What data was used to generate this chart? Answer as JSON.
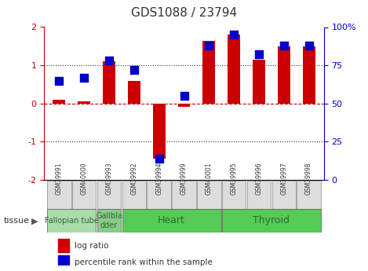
{
  "title": "GDS1088 / 23794",
  "samples": [
    "GSM39991",
    "GSM40000",
    "GSM39993",
    "GSM39992",
    "GSM39994",
    "GSM39999",
    "GSM40001",
    "GSM39995",
    "GSM39996",
    "GSM39997",
    "GSM39998"
  ],
  "log_ratio": [
    0.1,
    0.05,
    1.1,
    0.6,
    -1.45,
    -0.08,
    1.65,
    1.8,
    1.15,
    1.5,
    1.5
  ],
  "percentile_rank": [
    65,
    67,
    78,
    72,
    14,
    55,
    88,
    95,
    82,
    88,
    88
  ],
  "ylim_left": [
    -2,
    2
  ],
  "ylim_right": [
    0,
    100
  ],
  "yticks_left": [
    -2,
    -1,
    0,
    1,
    2
  ],
  "yticks_right": [
    0,
    25,
    50,
    75,
    100
  ],
  "ytick_labels_right": [
    "0",
    "25",
    "50",
    "75",
    "100%"
  ],
  "bar_color": "#cc0000",
  "dot_color": "#0000cc",
  "hline_color": "#cc0000",
  "dotted_color": "#333333",
  "tissue_groups": [
    {
      "label": "Fallopian tube",
      "start": 0,
      "end": 2,
      "color": "#aaddaa",
      "fontsize": 7
    },
    {
      "label": "Gallbla\ndder",
      "start": 2,
      "end": 3,
      "color": "#88cc88",
      "fontsize": 7
    },
    {
      "label": "Heart",
      "start": 3,
      "end": 7,
      "color": "#55cc55",
      "fontsize": 9
    },
    {
      "label": "Thyroid",
      "start": 7,
      "end": 11,
      "color": "#55cc55",
      "fontsize": 9
    }
  ],
  "legend_bar_label": "log ratio",
  "legend_dot_label": "percentile rank within the sample",
  "tissue_arrow_label": "tissue",
  "background_color": "#ffffff",
  "tick_label_color_left": "#cc0000",
  "tick_label_color_right": "#0000cc",
  "bar_width": 0.5,
  "dot_size": 60
}
